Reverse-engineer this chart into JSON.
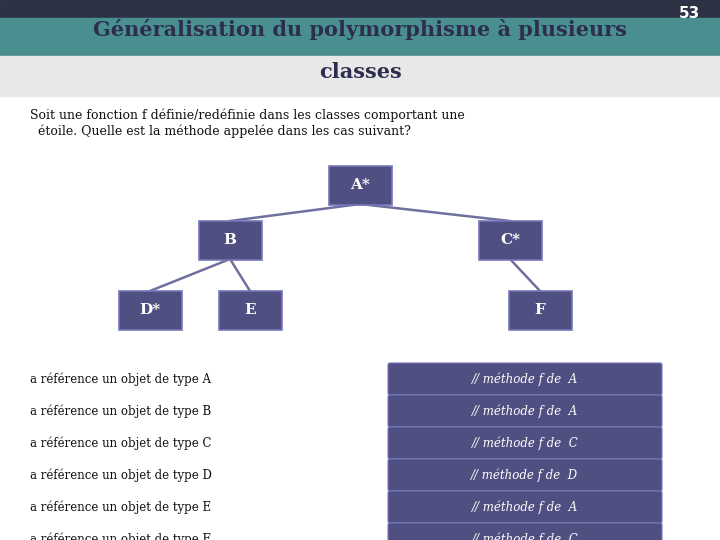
{
  "title_line1": "Généralisation du polymorphisme à plusieurs",
  "title_line2": "classes",
  "slide_number": "53",
  "bg_color": "#ffffff",
  "header_dark_color": "#2d3244",
  "header_teal_color": "#4a8f8f",
  "title_text_color": "#2d2d4e",
  "slide_num_color": "#ffffff",
  "subtitle_text_line1": "Soit une fonction f définie/redéfinie dans les classes comportant une",
  "subtitle_text_line2": "  étoile. Quelle est la méthode appelée dans les cas suivant?",
  "node_color": "#4f4f82",
  "node_text_color": "#ffffff",
  "node_border_color": "#7777bb",
  "line_color": "#7070a0",
  "left_labels": [
    "a référence un objet de type A",
    "a référence un objet de type B",
    "a référence un objet de type C",
    "a référence un objet de type D",
    "a référence un objet de type E",
    "a référence un objet de type F"
  ],
  "right_labels": [
    "// méthode f de  A",
    "// méthode f de  A",
    "// méthode f de  C",
    "// méthode f de  D",
    "// méthode f de  A",
    "// méthode f de  C"
  ]
}
